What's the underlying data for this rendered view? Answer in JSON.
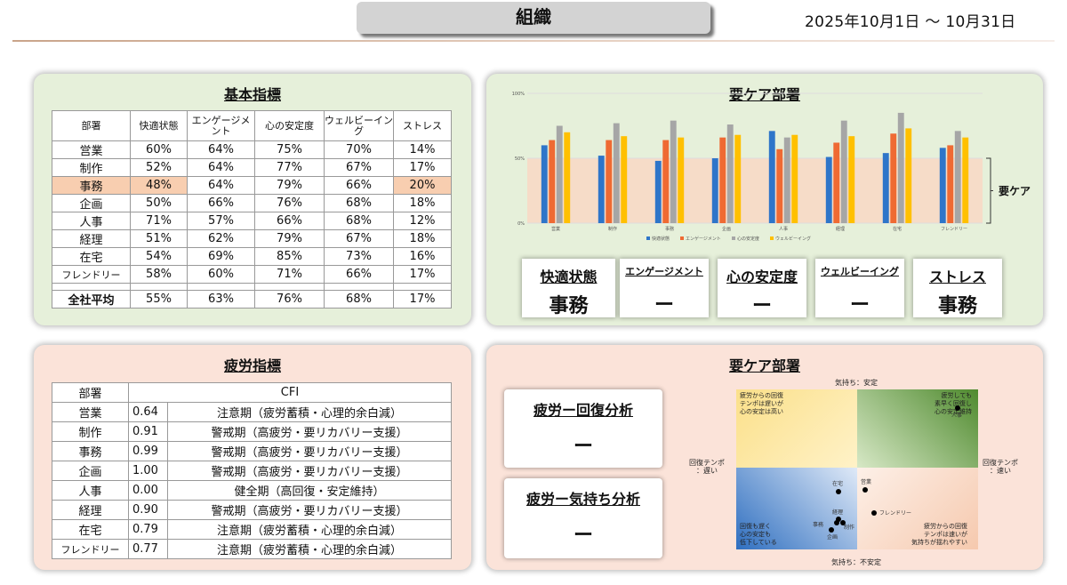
{
  "header": {
    "title": "組織",
    "date_range": "2025年10月1日 〜 10月31日"
  },
  "basic": {
    "title": "基本指標",
    "headers": [
      "部署",
      "快適状態",
      "エンゲージメント",
      "心の安定度",
      "ウェルビーイング",
      "ストレス"
    ],
    "rows": [
      [
        "営業",
        "60%",
        "64%",
        "75%",
        "70%",
        "14%"
      ],
      [
        "制作",
        "52%",
        "64%",
        "77%",
        "67%",
        "17%"
      ],
      [
        "事務",
        "48%",
        "64%",
        "79%",
        "66%",
        "20%"
      ],
      [
        "企画",
        "50%",
        "66%",
        "76%",
        "68%",
        "18%"
      ],
      [
        "人事",
        "71%",
        "57%",
        "66%",
        "68%",
        "12%"
      ],
      [
        "経理",
        "51%",
        "62%",
        "79%",
        "67%",
        "18%"
      ],
      [
        "在宅",
        "54%",
        "69%",
        "85%",
        "73%",
        "16%"
      ],
      [
        "フレンドリー",
        "58%",
        "60%",
        "71%",
        "66%",
        "17%"
      ]
    ],
    "average": [
      "全社平均",
      "55%",
      "63%",
      "76%",
      "68%",
      "17%"
    ]
  },
  "care": {
    "title": "要ケア部署",
    "band_label": "要ケア",
    "kpis": [
      {
        "label": "快適状態",
        "value": "事務"
      },
      {
        "label": "エンゲージメント",
        "value": "ー"
      },
      {
        "label": "心の安定度",
        "value": "ー"
      },
      {
        "label": "ウェルビーイング",
        "value": "ー"
      },
      {
        "label": "ストレス",
        "value": "事務"
      }
    ]
  },
  "chart_data": {
    "type": "bar",
    "categories": [
      "営業",
      "制作",
      "事務",
      "企画",
      "人事",
      "経理",
      "在宅",
      "フレンドリー"
    ],
    "series": [
      {
        "name": "快適状態",
        "values": [
          60,
          52,
          48,
          50,
          71,
          51,
          54,
          58
        ],
        "color": "#2e75c9"
      },
      {
        "name": "エンゲージメント",
        "values": [
          64,
          64,
          64,
          66,
          57,
          62,
          69,
          60
        ],
        "color": "#ef6a33"
      },
      {
        "name": "心の安定度",
        "values": [
          75,
          77,
          79,
          76,
          66,
          79,
          85,
          71
        ],
        "color": "#a6a6a6"
      },
      {
        "name": "ウェルビーイング",
        "values": [
          70,
          67,
          66,
          68,
          68,
          67,
          73,
          66
        ],
        "color": "#ffc000"
      }
    ],
    "y_ticks": [
      "100%",
      "50%",
      "0%"
    ],
    "ylim": [
      0,
      100
    ],
    "care_band": [
      0,
      50
    ]
  },
  "fatigue": {
    "title": "疲労指標",
    "headers": [
      "部署",
      "CFI"
    ],
    "rows": [
      [
        "営業",
        "0.64",
        "注意期（疲労蓄積・心理的余白減）"
      ],
      [
        "制作",
        "0.91",
        "警戒期（高疲労・要リカバリー支援）"
      ],
      [
        "事務",
        "0.99",
        "警戒期（高疲労・要リカバリー支援）"
      ],
      [
        "企画",
        "1.00",
        "警戒期（高疲労・要リカバリー支援）"
      ],
      [
        "人事",
        "0.00",
        "健全期（高回復・安定維持）"
      ],
      [
        "経理",
        "0.90",
        "警戒期（高疲労・要リカバリー支援）"
      ],
      [
        "在宅",
        "0.79",
        "注意期（疲労蓄積・心理的余白減）"
      ],
      [
        "フレンドリー",
        "0.77",
        "注意期（疲労蓄積・心理的余白減）"
      ]
    ]
  },
  "fatigue_care": {
    "title": "要ケア部署",
    "cards": [
      {
        "label": "疲労ー回復分析",
        "value": "ー"
      },
      {
        "label": "疲労ー気持ち分析",
        "value": "ー"
      }
    ],
    "matrix": {
      "top": "気持ち：安定",
      "bottom": "気持ち：不安定",
      "left": "回復テンポ\n：遅い",
      "right": "回復テンポ\n：速い",
      "q_tl": "疲労からの回復\nテンポは遅いが\n心の安定は高い",
      "q_tr": "疲労しても\n素早く回復し\n心の安定維持",
      "q_bl": "回復も遅く\n心の安定も\n低下している",
      "q_br": "疲労からの回復\nテンポは速いが\n気持ちが揺れやすい",
      "points": [
        "在宅",
        "営業",
        "フレンドリー",
        "経理",
        "事務",
        "制作",
        "企画",
        "人事"
      ]
    }
  }
}
